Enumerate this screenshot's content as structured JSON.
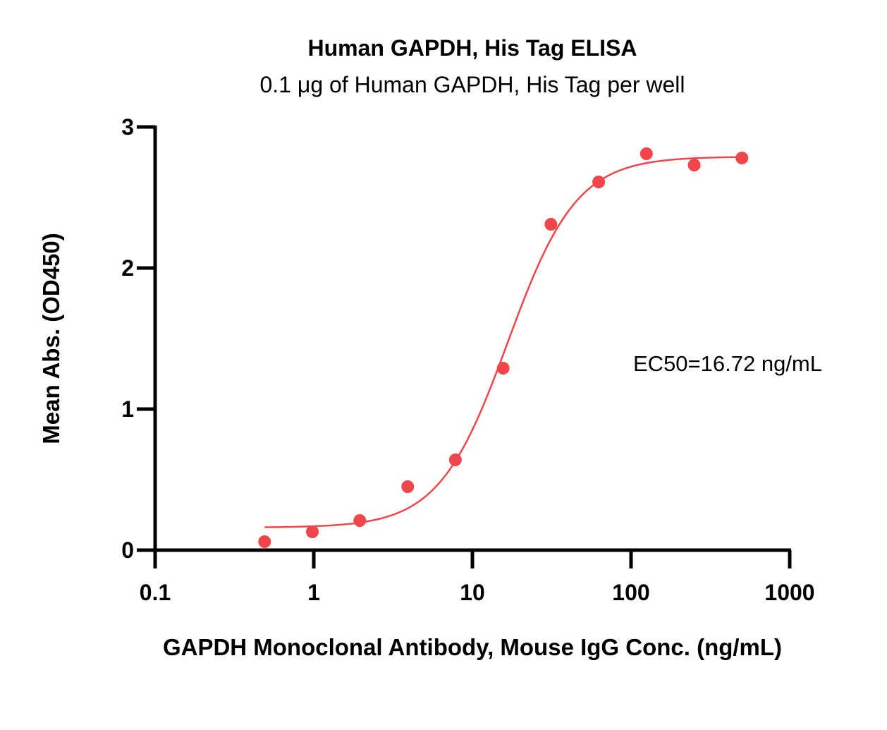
{
  "chart_data": {
    "type": "scatter",
    "title": "Human GAPDH, His Tag ELISA",
    "subtitle": "0.1 μg of Human GAPDH, His Tag per well",
    "xlabel": "GAPDH Monoclonal Antibody, Mouse IgG Conc. (ng/mL)",
    "ylabel": "Mean Abs. (OD450)",
    "x_scale": "log",
    "xlim": [
      0.1,
      1000
    ],
    "ylim": [
      0,
      3
    ],
    "x_ticks": [
      0.1,
      1,
      10,
      100,
      1000
    ],
    "x_tick_labels": [
      "0.1",
      "1",
      "10",
      "100",
      "1000"
    ],
    "y_ticks": [
      0,
      1,
      2,
      3
    ],
    "y_tick_labels": [
      "0",
      "1",
      "2",
      "3"
    ],
    "grid": false,
    "annotation": "EC50=16.72 ng/mL",
    "color": "#f0464b",
    "series": [
      {
        "x": [
          0.49,
          0.98,
          1.95,
          3.91,
          7.81,
          15.63,
          31.25,
          62.5,
          125,
          250,
          500
        ],
        "y": [
          0.06,
          0.13,
          0.21,
          0.45,
          0.64,
          1.29,
          2.31,
          2.61,
          2.81,
          2.73,
          2.78
        ]
      }
    ],
    "fit": {
      "type": "4PL",
      "bottom": 0.16,
      "top": 2.79,
      "ec50": 16.72,
      "hill": 2.0,
      "x_range": [
        0.49,
        500
      ]
    }
  }
}
